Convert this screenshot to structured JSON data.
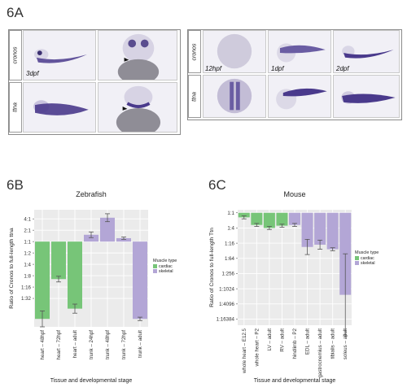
{
  "figure": {
    "panel_6a": "6A",
    "panel_6b": "6B",
    "panel_6c": "6C",
    "row_label_cronos": "cronos",
    "row_label_ttna": "ttna",
    "stage_3dpf": "3dpf",
    "stage_12hpf": "12hpf",
    "stage_1dpf": "1dpf",
    "stage_2dpf": "2dpf",
    "stain_color": "#4a3a8c"
  },
  "chart_data": [
    {
      "type": "bar",
      "title": "Zebrafish",
      "xlabel": "Tissue and developmental stage",
      "ylabel": "Ratio of Cronos to full-length ttna",
      "categories": [
        "heart – 48hpf",
        "heart – 72hpf",
        "heart – adult",
        "trunk – 24hpf",
        "trunk – 48hpf",
        "trunk – 72hpf",
        "trunk – adult"
      ],
      "values_log2": [
        -6.8,
        -3.3,
        -5.9,
        0.6,
        2.1,
        0.3,
        -6.8
      ],
      "errors_log2": [
        0.7,
        0.25,
        0.4,
        0.25,
        0.35,
        0.1,
        0.15
      ],
      "muscle_type": [
        "cardiac",
        "cardiac",
        "cardiac",
        "skeletal",
        "skeletal",
        "skeletal",
        "skeletal"
      ],
      "y_tick_labels": [
        "4:1",
        "2:1",
        "1:1",
        "1:2",
        "1:4",
        "1:8",
        "1:16",
        "1:32"
      ],
      "y_tick_values_log2": [
        2,
        1,
        0,
        -1,
        -2,
        -3,
        -4,
        -5
      ],
      "ylim_log2": [
        -7.5,
        2.8
      ],
      "legend_title": "Muscle type",
      "legend": [
        "cardiac",
        "skeletal"
      ],
      "colors": {
        "cardiac": "#77c578",
        "skeletal": "#b3a6d6"
      },
      "grid": true,
      "legend_position": "right"
    },
    {
      "type": "bar",
      "title": "Mouse",
      "xlabel": "Tissue and developmental stage",
      "ylabel": "Ratio of Cronos to full-length Ttn",
      "categories": [
        "whole heart – E12.5",
        "whole heart – P2",
        "LV – adult",
        "RV – adult",
        "hindlimb – P2",
        "EDL – adult",
        "gastrocnemius – adult",
        "tibialis – adult",
        "soleus – adult"
      ],
      "values_log2": [
        -0.6,
        -1.6,
        -2.0,
        -1.7,
        -1.6,
        -4.5,
        -4.2,
        -4.8,
        -10.8
      ],
      "errors_log2": [
        0.2,
        0.2,
        0.2,
        0.2,
        0.2,
        1.0,
        0.6,
        0.2,
        5.4
      ],
      "muscle_type": [
        "cardiac",
        "cardiac",
        "cardiac",
        "cardiac",
        "skeletal",
        "skeletal",
        "skeletal",
        "skeletal",
        "skeletal"
      ],
      "y_tick_labels": [
        "1:1",
        "1:4",
        "1:16",
        "1:64",
        "1:256",
        "1:1024",
        "1:4096",
        "1:16384"
      ],
      "y_tick_values_log2": [
        0,
        -2,
        -4,
        -6,
        -8,
        -10,
        -12,
        -14
      ],
      "ylim_log2": [
        -14.8,
        0.4
      ],
      "legend_title": "Muscle type",
      "legend": [
        "cardiac",
        "skeletal"
      ],
      "colors": {
        "cardiac": "#77c578",
        "skeletal": "#b3a6d6"
      },
      "grid": true,
      "legend_position": "right"
    }
  ]
}
